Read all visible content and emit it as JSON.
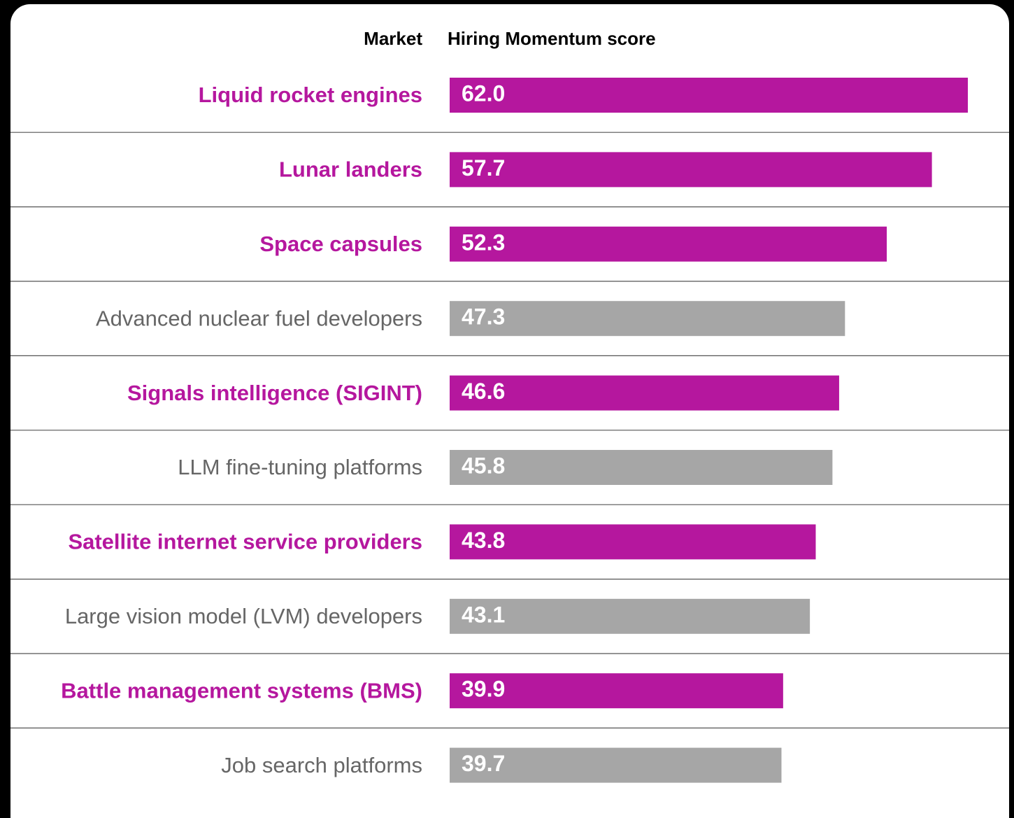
{
  "chart_data": {
    "type": "bar",
    "orientation": "horizontal",
    "category_header": "Market",
    "value_header": "Hiring Momentum score",
    "categories": [
      "Liquid rocket engines",
      "Lunar landers",
      "Space capsules",
      "Advanced nuclear fuel developers",
      "Signals intelligence (SIGINT)",
      "LLM fine-tuning platforms",
      "Satellite internet service providers",
      "Large vision model (LVM) developers",
      "Battle management systems (BMS)",
      "Job search platforms"
    ],
    "values": [
      62.0,
      57.7,
      52.3,
      47.3,
      46.6,
      45.8,
      43.8,
      43.1,
      39.9,
      39.7
    ],
    "value_labels": [
      "62.0",
      "57.7",
      "52.3",
      "47.3",
      "46.6",
      "45.8",
      "43.8",
      "43.1",
      "39.9",
      "39.7"
    ],
    "highlighted": [
      true,
      true,
      true,
      false,
      true,
      false,
      true,
      false,
      true,
      false
    ],
    "highlight_color": "#b5179e",
    "base_color": "#a6a6a6",
    "base_label_color": "#666666"
  }
}
